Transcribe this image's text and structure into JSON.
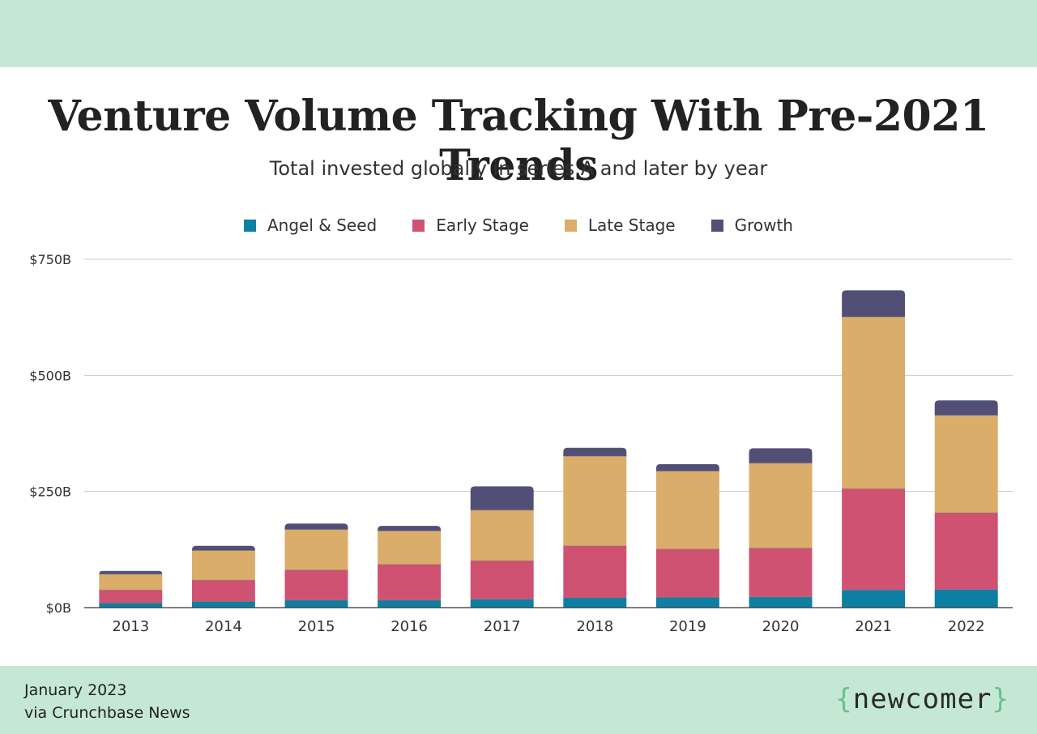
{
  "header": {
    "title": "Venture Volume Tracking With Pre-2021 Trends",
    "subtitle": "Total invested globally in series A and later by year"
  },
  "footer": {
    "date": "January 2023",
    "source": "via Crunchbase News",
    "brand": "newcomer",
    "brand_brace_open": "{",
    "brand_brace_close": "}"
  },
  "colors": {
    "angel": "#0c7fa3",
    "early": "#d05273",
    "late": "#dbad6a",
    "growth": "#524f77",
    "band": "#c5e8d5",
    "grid": "#cccccc",
    "axis": "#333333"
  },
  "chart_data": {
    "type": "bar",
    "stacked": true,
    "categories": [
      "2013",
      "2014",
      "2015",
      "2016",
      "2017",
      "2018",
      "2019",
      "2020",
      "2021",
      "2022"
    ],
    "series": [
      {
        "name": "Angel & Seed",
        "color": "#0c7fa3",
        "values": [
          10,
          13,
          16,
          16,
          18,
          21,
          22,
          23,
          38,
          39
        ]
      },
      {
        "name": "Early Stage",
        "color": "#d05273",
        "values": [
          28,
          46,
          65,
          77,
          83,
          112,
          104,
          105,
          218,
          165
        ]
      },
      {
        "name": "Late Stage",
        "color": "#dbad6a",
        "values": [
          34,
          64,
          87,
          72,
          109,
          193,
          168,
          183,
          370,
          210
        ]
      },
      {
        "name": "Growth",
        "color": "#524f77",
        "values": [
          7,
          10,
          13,
          11,
          51,
          18,
          15,
          32,
          57,
          32
        ]
      }
    ],
    "ylim": [
      0,
      750
    ],
    "yticks": [
      0,
      250,
      500,
      750
    ],
    "ytick_labels": [
      "$0B",
      "$250B",
      "$500B",
      "$750B"
    ],
    "grid": true,
    "legend_position": "top-center"
  }
}
